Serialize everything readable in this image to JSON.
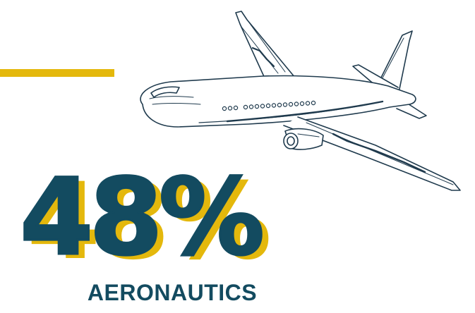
{
  "stat": {
    "value": "48%",
    "label": "AERONAUTICS"
  },
  "colors": {
    "primary": "#134b60",
    "accent": "#e4b80c",
    "background": "#ffffff"
  },
  "illustration": {
    "icon": "airplane-icon"
  }
}
